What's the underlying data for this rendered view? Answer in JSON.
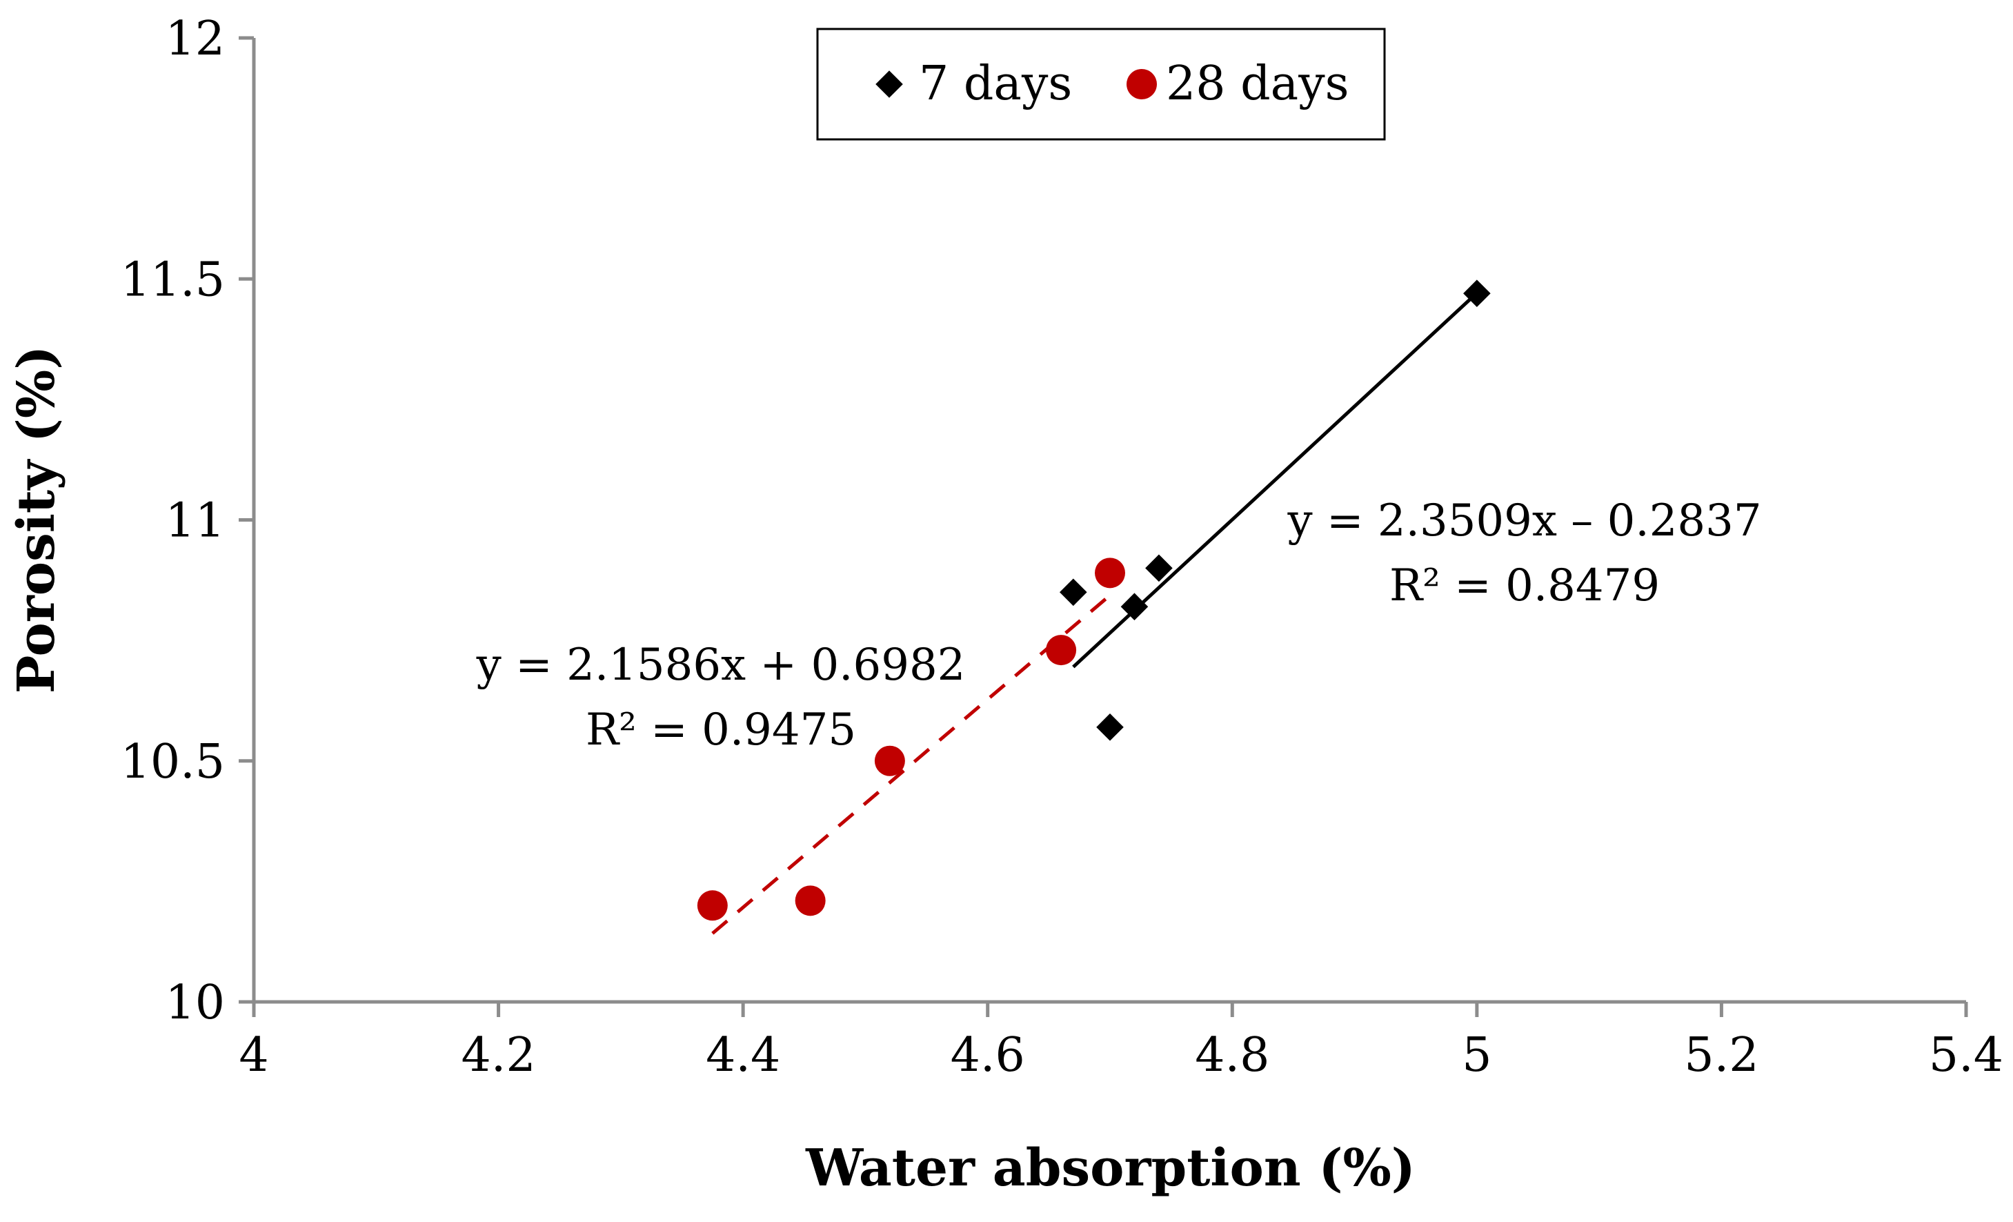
{
  "chart_data": {
    "type": "scatter",
    "title": "",
    "xlabel": "Water absorption (%)",
    "ylabel": "Porosity (%)",
    "xlim": [
      4,
      5.4
    ],
    "ylim": [
      10,
      12
    ],
    "xticks": [
      4,
      4.2,
      4.4,
      4.6,
      4.8,
      5,
      5.2,
      5.4
    ],
    "yticks": [
      10,
      10.5,
      11,
      11.5,
      12
    ],
    "xtick_labels": [
      "4",
      "4.2",
      "4.4",
      "4.6",
      "4.8",
      "5",
      "5.2",
      "5.4"
    ],
    "ytick_labels": [
      "10",
      "10.5",
      "11",
      "11.5",
      "12"
    ],
    "grid": false,
    "legend_position": "top-center",
    "series": [
      {
        "name": "7 days",
        "marker": "diamond",
        "color": "#000000",
        "points": [
          {
            "x": 4.67,
            "y": 10.85
          },
          {
            "x": 4.74,
            "y": 10.9
          },
          {
            "x": 4.72,
            "y": 10.82
          },
          {
            "x": 4.7,
            "y": 10.57
          },
          {
            "x": 5.0,
            "y": 11.47
          }
        ],
        "trendline": {
          "slope": 2.3509,
          "intercept": -0.2837,
          "x_range": [
            4.67,
            5.0
          ],
          "style": "solid",
          "equation": "y = 2.3509x – 0.2837",
          "r2": "R² = 0.8479"
        }
      },
      {
        "name": "28 days",
        "marker": "circle",
        "color": "#c00000",
        "points": [
          {
            "x": 4.375,
            "y": 10.2
          },
          {
            "x": 4.455,
            "y": 10.21
          },
          {
            "x": 4.52,
            "y": 10.5
          },
          {
            "x": 4.66,
            "y": 10.73
          },
          {
            "x": 4.7,
            "y": 10.89
          }
        ],
        "trendline": {
          "slope": 2.1586,
          "intercept": 0.6982,
          "x_range": [
            4.375,
            4.7
          ],
          "style": "dashed",
          "equation": "y = 2.1586x + 0.6982",
          "r2": "R² = 0.9475"
        }
      }
    ]
  }
}
